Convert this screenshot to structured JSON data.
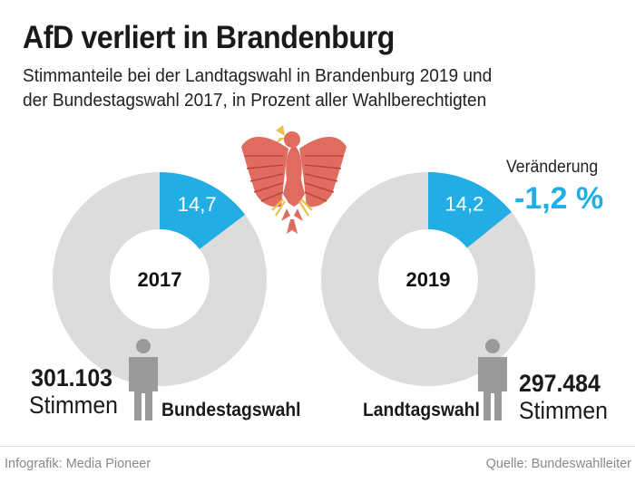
{
  "header": {
    "title": "AfD verliert in Brandenburg",
    "subtitle_line1": "Stimmanteile bei der Landtagswahl in Brandenburg 2019 und",
    "subtitle_line2": "der Bundestagswahl 2017, in Prozent aller Wahlberechtigten"
  },
  "chart_data": {
    "type": "pie",
    "title": "AfD verliert in Brandenburg",
    "unit": "%",
    "series": [
      {
        "name": "Bundestagswahl",
        "year": "2017",
        "label": "14,7",
        "value": 14.7,
        "votes": "301.103",
        "votes_unit": "Stimmen"
      },
      {
        "name": "Landtagswahl",
        "year": "2019",
        "label": "14,2",
        "value": 14.2,
        "votes": "297.484",
        "votes_unit": "Stimmen"
      }
    ],
    "annotations": {
      "change_label": "Veränderung",
      "change_value": "-1,2 %"
    }
  },
  "colors": {
    "highlight": "#22aee4",
    "ring": "#dcdcdc",
    "person": "#9a9a9a",
    "text": "#1a1a1a"
  },
  "icons": [
    "brandenburg-eagle-icon",
    "person-icon"
  ],
  "footer": {
    "credit": "Infografik: Media Pioneer",
    "source": "Quelle: Bundeswahlleiter"
  }
}
